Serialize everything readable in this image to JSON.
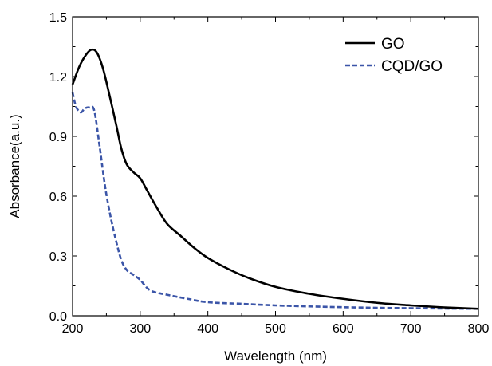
{
  "chart_data": {
    "type": "line",
    "xlabel": "Wavelength (nm)",
    "ylabel": "Absorbance(a.u.)",
    "xlim": [
      200,
      800
    ],
    "ylim": [
      0.0,
      1.5
    ],
    "x_ticks": [
      "200",
      "300",
      "400",
      "500",
      "600",
      "700",
      "800"
    ],
    "y_ticks": [
      "0.0",
      "0.3",
      "0.6",
      "0.9",
      "1.2",
      "1.5"
    ],
    "grid": false,
    "legend_position": "top-right",
    "series": [
      {
        "name": "GO",
        "color": "#000000",
        "dash": "solid",
        "points": [
          [
            200,
            1.16
          ],
          [
            210,
            1.25
          ],
          [
            220,
            1.31
          ],
          [
            228,
            1.335
          ],
          [
            236,
            1.32
          ],
          [
            245,
            1.24
          ],
          [
            255,
            1.1
          ],
          [
            265,
            0.95
          ],
          [
            272,
            0.84
          ],
          [
            280,
            0.76
          ],
          [
            290,
            0.72
          ],
          [
            300,
            0.69
          ],
          [
            310,
            0.63
          ],
          [
            325,
            0.54
          ],
          [
            340,
            0.46
          ],
          [
            360,
            0.4
          ],
          [
            380,
            0.34
          ],
          [
            400,
            0.29
          ],
          [
            430,
            0.235
          ],
          [
            460,
            0.19
          ],
          [
            500,
            0.145
          ],
          [
            550,
            0.11
          ],
          [
            600,
            0.085
          ],
          [
            650,
            0.065
          ],
          [
            700,
            0.052
          ],
          [
            750,
            0.042
          ],
          [
            800,
            0.035
          ]
        ]
      },
      {
        "name": "CQD/GO",
        "color": "#3b55a8",
        "dash": "dashed",
        "points": [
          [
            200,
            1.12
          ],
          [
            205,
            1.05
          ],
          [
            212,
            1.02
          ],
          [
            218,
            1.04
          ],
          [
            225,
            1.045
          ],
          [
            232,
            1.03
          ],
          [
            240,
            0.85
          ],
          [
            248,
            0.65
          ],
          [
            256,
            0.5
          ],
          [
            264,
            0.38
          ],
          [
            272,
            0.28
          ],
          [
            280,
            0.23
          ],
          [
            290,
            0.205
          ],
          [
            300,
            0.18
          ],
          [
            310,
            0.14
          ],
          [
            320,
            0.12
          ],
          [
            340,
            0.105
          ],
          [
            370,
            0.085
          ],
          [
            400,
            0.068
          ],
          [
            450,
            0.06
          ],
          [
            500,
            0.052
          ],
          [
            550,
            0.047
          ],
          [
            600,
            0.043
          ],
          [
            650,
            0.04
          ],
          [
            700,
            0.038
          ],
          [
            750,
            0.036
          ],
          [
            800,
            0.035
          ]
        ]
      }
    ]
  }
}
